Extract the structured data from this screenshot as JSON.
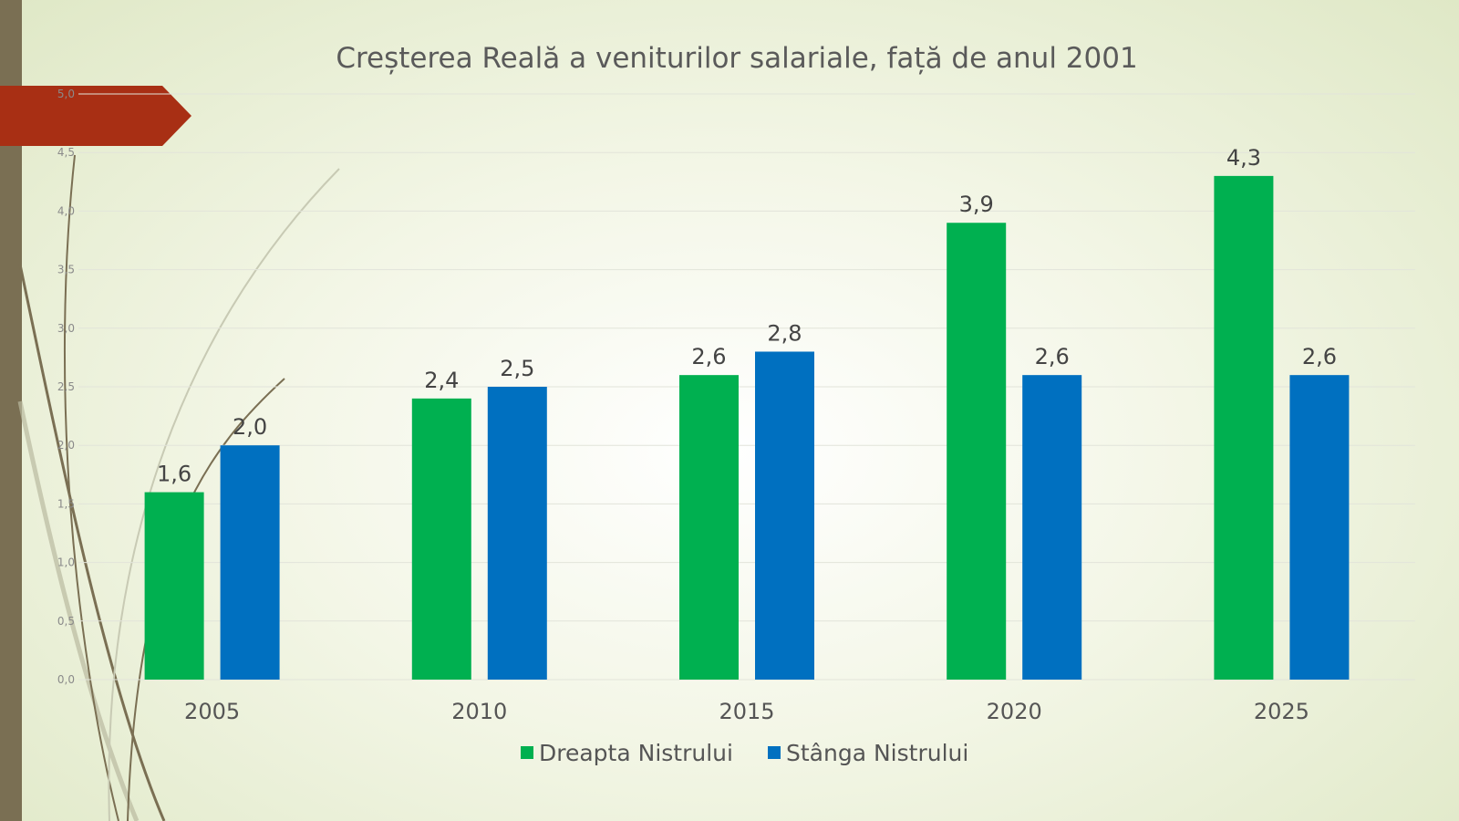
{
  "chart_data": {
    "type": "bar",
    "title": "Creșterea Reală a veniturilor salariale, față de anul 2001",
    "categories": [
      "2005",
      "2010",
      "2015",
      "2020",
      "2025"
    ],
    "series": [
      {
        "name": "Dreapta Nistrului",
        "color": "#00b050",
        "values": [
          1.6,
          2.4,
          2.6,
          3.9,
          4.3
        ],
        "labels": [
          "1,6",
          "2,4",
          "2,6",
          "3,9",
          "4,3"
        ]
      },
      {
        "name": "Stânga Nistrului",
        "color": "#0070c0",
        "values": [
          2.0,
          2.5,
          2.8,
          2.6,
          2.6
        ],
        "labels": [
          "2,0",
          "2,5",
          "2,8",
          "2,6",
          "2,6"
        ]
      }
    ],
    "ylim": [
      0,
      5
    ],
    "yticks": [
      0,
      0.5,
      1,
      1.5,
      2,
      2.5,
      3,
      3.5,
      4,
      4.5,
      5
    ],
    "ytick_labels": [
      "0,0",
      "0,5",
      "1,0",
      "1,5",
      "2,0",
      "2,5",
      "3,0",
      "3,5",
      "4,0",
      "4,5",
      "5,0"
    ],
    "legend_position": "bottom",
    "grid": true
  }
}
